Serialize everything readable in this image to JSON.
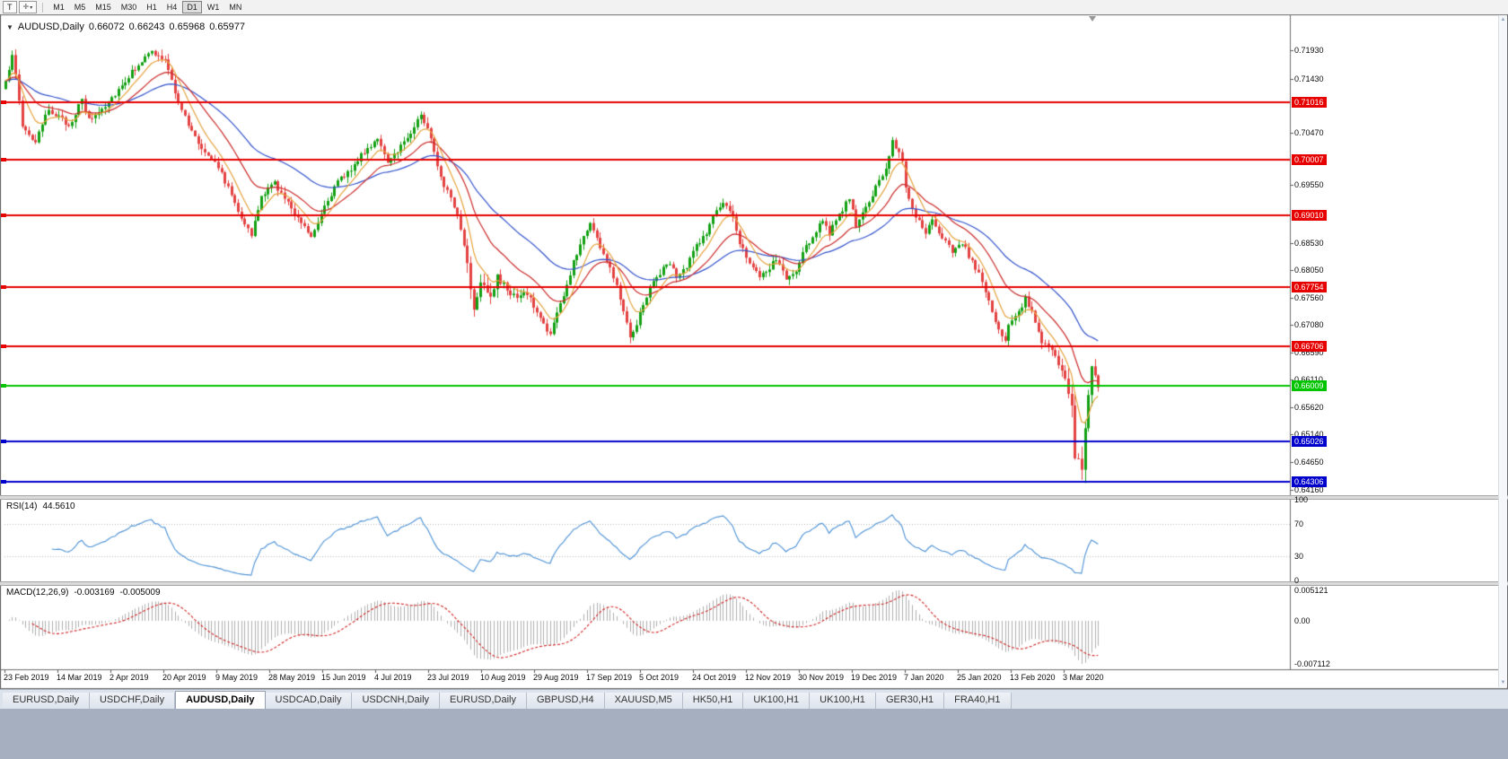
{
  "toolbar": {
    "template_button": "T",
    "timeframes": [
      "M1",
      "M5",
      "M15",
      "M30",
      "H1",
      "H4",
      "D1",
      "W1",
      "MN"
    ],
    "active_timeframe": "D1"
  },
  "chart_header": {
    "symbol": "AUDUSD,Daily",
    "open": "0.66072",
    "high": "0.66243",
    "low": "0.65968",
    "close": "0.65977"
  },
  "rsi_panel": {
    "name": "RSI(14)",
    "value": "44.5610",
    "axis_labels": [
      "100",
      "70",
      "30",
      "0"
    ],
    "levels": [
      70,
      30
    ],
    "line_color": "#4a90d5"
  },
  "macd_panel": {
    "name": "MACD(12,26,9)",
    "value_main": "-0.003169",
    "value_signal": "-0.005009",
    "axis_labels": [
      "0.005121",
      "0.00",
      "-0.007112"
    ],
    "histogram_color": "#b0b0b0",
    "signal_color": "#d02020"
  },
  "tabs": {
    "items": [
      "EURUSD,Daily",
      "USDCHF,Daily",
      "AUDUSD,Daily",
      "USDCAD,Daily",
      "USDCNH,Daily",
      "EURUSD,Daily",
      "GBPUSD,H4",
      "XAUUSD,M5",
      "HK50,H1",
      "UK100,H1",
      "UK100,H1",
      "GER30,H1",
      "FRA40,H1"
    ],
    "active_index": 2
  },
  "colors": {
    "bull": "#13a113",
    "bear": "#e44242",
    "ma_fast": "#e6a23c",
    "ma_mid": "#cc2b2b",
    "ma_slow": "#3353cc",
    "chart_bg": "#ffffff"
  },
  "chart_data": {
    "type": "candlestick",
    "symbol": "AUDUSD",
    "timeframe": "Daily",
    "title": "AUDUSD,Daily 0.66072 0.66243 0.65968 0.65977",
    "y_range": [
      0.641,
      0.7248
    ],
    "bars_total": 330,
    "y_axis_labels": [
      "0.71930",
      "0.71430",
      "0.70470",
      "0.69550",
      "0.68530",
      "0.68050",
      "0.67560",
      "0.67080",
      "0.66590",
      "0.66110",
      "0.65620",
      "0.65140",
      "0.64650",
      "0.64160"
    ],
    "x_axis_labels": [
      "23 Feb 2019",
      "14 Mar 2019",
      "2 Apr 2019",
      "20 Apr 2019",
      "9 May 2019",
      "28 May 2019",
      "15 Jun 2019",
      "4 Jul 2019",
      "23 Jul 2019",
      "10 Aug 2019",
      "29 Aug 2019",
      "17 Sep 2019",
      "5 Oct 2019",
      "24 Oct 2019",
      "12 Nov 2019",
      "30 Nov 2019",
      "19 Dec 2019",
      "7 Jan 2020",
      "25 Jan 2020",
      "13 Feb 2020",
      "3 Mar 2020"
    ],
    "close_path": [
      [
        0,
        0.7135
      ],
      [
        2,
        0.719
      ],
      [
        5,
        0.706
      ],
      [
        9,
        0.703
      ],
      [
        13,
        0.709
      ],
      [
        19,
        0.706
      ],
      [
        23,
        0.7105
      ],
      [
        25,
        0.707
      ],
      [
        28,
        0.7085
      ],
      [
        32,
        0.711
      ],
      [
        36,
        0.714
      ],
      [
        40,
        0.717
      ],
      [
        44,
        0.719
      ],
      [
        48,
        0.7175
      ],
      [
        51,
        0.712
      ],
      [
        55,
        0.706
      ],
      [
        59,
        0.702
      ],
      [
        63,
        0.7
      ],
      [
        67,
        0.695
      ],
      [
        71,
        0.69
      ],
      [
        74,
        0.6865
      ],
      [
        77,
        0.6935
      ],
      [
        81,
        0.696
      ],
      [
        84,
        0.693
      ],
      [
        88,
        0.69
      ],
      [
        92,
        0.6865
      ],
      [
        96,
        0.692
      ],
      [
        100,
        0.696
      ],
      [
        104,
        0.6985
      ],
      [
        106,
        0.7
      ],
      [
        109,
        0.702
      ],
      [
        112,
        0.704
      ],
      [
        115,
        0.699
      ],
      [
        117,
        0.701
      ],
      [
        121,
        0.704
      ],
      [
        125,
        0.708
      ],
      [
        128,
        0.704
      ],
      [
        131,
        0.697
      ],
      [
        134,
        0.693
      ],
      [
        136,
        0.6905
      ],
      [
        139,
        0.682
      ],
      [
        141,
        0.6735
      ],
      [
        143,
        0.679
      ],
      [
        146,
        0.676
      ],
      [
        148,
        0.679
      ],
      [
        151,
        0.677
      ],
      [
        154,
        0.6755
      ],
      [
        157,
        0.6765
      ],
      [
        159,
        0.674
      ],
      [
        162,
        0.671
      ],
      [
        164,
        0.669
      ],
      [
        166,
        0.673
      ],
      [
        169,
        0.6775
      ],
      [
        171,
        0.682
      ],
      [
        174,
        0.6865
      ],
      [
        176,
        0.689
      ],
      [
        178,
        0.686
      ],
      [
        181,
        0.682
      ],
      [
        184,
        0.678
      ],
      [
        186,
        0.6735
      ],
      [
        188,
        0.669
      ],
      [
        190,
        0.671
      ],
      [
        192,
        0.6745
      ],
      [
        194,
        0.6775
      ],
      [
        197,
        0.68
      ],
      [
        200,
        0.682
      ],
      [
        202,
        0.679
      ],
      [
        205,
        0.681
      ],
      [
        208,
        0.685
      ],
      [
        211,
        0.687
      ],
      [
        213,
        0.69
      ],
      [
        216,
        0.6925
      ],
      [
        219,
        0.6895
      ],
      [
        221,
        0.6855
      ],
      [
        224,
        0.682
      ],
      [
        227,
        0.679
      ],
      [
        229,
        0.68
      ],
      [
        232,
        0.6825
      ],
      [
        235,
        0.679
      ],
      [
        238,
        0.68
      ],
      [
        240,
        0.6835
      ],
      [
        243,
        0.6865
      ],
      [
        246,
        0.6895
      ],
      [
        248,
        0.687
      ],
      [
        251,
        0.69
      ],
      [
        254,
        0.6935
      ],
      [
        256,
        0.688
      ],
      [
        259,
        0.6915
      ],
      [
        262,
        0.695
      ],
      [
        265,
        0.6985
      ],
      [
        267,
        0.7035
      ],
      [
        270,
        0.7
      ],
      [
        271,
        0.695
      ],
      [
        274,
        0.69
      ],
      [
        277,
        0.687
      ],
      [
        279,
        0.689
      ],
      [
        282,
        0.686
      ],
      [
        285,
        0.684
      ],
      [
        288,
        0.6855
      ],
      [
        290,
        0.683
      ],
      [
        293,
        0.68
      ],
      [
        296,
        0.675
      ],
      [
        298,
        0.671
      ],
      [
        301,
        0.668
      ],
      [
        302,
        0.671
      ],
      [
        305,
        0.673
      ],
      [
        307,
        0.6755
      ],
      [
        309,
        0.673
      ],
      [
        311,
        0.67
      ],
      [
        312,
        0.668
      ],
      [
        315,
        0.666
      ],
      [
        317,
        0.664
      ],
      [
        319,
        0.661
      ],
      [
        321,
        0.656
      ],
      [
        322,
        0.648
      ],
      [
        324,
        0.644
      ],
      [
        325,
        0.652
      ],
      [
        326,
        0.659
      ],
      [
        327,
        0.664
      ],
      [
        328,
        0.6625
      ],
      [
        329,
        0.65977
      ]
    ],
    "horizontal_lines": [
      {
        "price": 0.71016,
        "label": "0.71016",
        "color": "#e60000"
      },
      {
        "price": 0.70007,
        "label": "0.70007",
        "color": "#e60000"
      },
      {
        "price": 0.6901,
        "label": "0.69010",
        "color": "#e60000"
      },
      {
        "price": 0.67754,
        "label": "0.67754",
        "color": "#e60000"
      },
      {
        "price": 0.66706,
        "label": "0.66706",
        "color": "#e60000"
      },
      {
        "price": 0.66009,
        "label": "0.66009",
        "color": "#00c400"
      },
      {
        "price": 0.65026,
        "label": "0.65026",
        "color": "#0000cc"
      },
      {
        "price": 0.64306,
        "label": "0.64306",
        "color": "#0000cc"
      }
    ],
    "moving_averages": [
      {
        "period": 8,
        "color": "#e6a23c"
      },
      {
        "period": 20,
        "color": "#cc2b2b"
      },
      {
        "period": 45,
        "color": "#3353cc"
      }
    ],
    "indicators": [
      {
        "name": "RSI",
        "period": 14,
        "current": 44.561,
        "scale": [
          0,
          100
        ],
        "levels": [
          30,
          70
        ]
      },
      {
        "name": "MACD",
        "fast": 12,
        "slow": 26,
        "signal": 9,
        "current_main": -0.003169,
        "current_signal": -0.005009,
        "axis_max": 0.005121,
        "axis_min": -0.007112
      }
    ]
  }
}
